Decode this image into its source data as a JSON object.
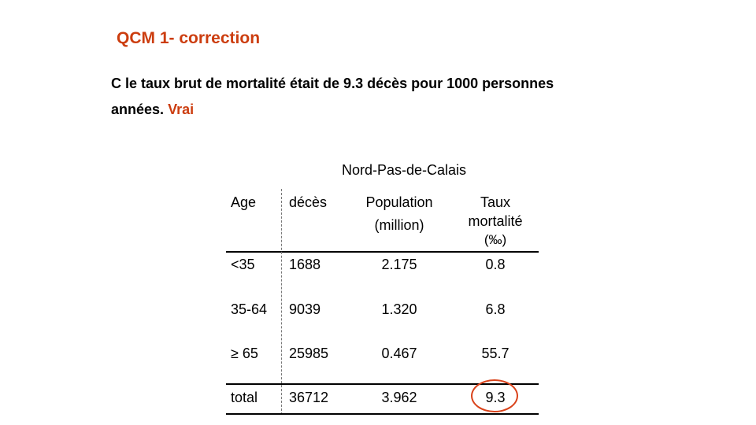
{
  "slide": {
    "title": "QCM 1- correction",
    "statement_line1": "C le taux brut de mortalité était de 9.3 décès pour 1000 personnes",
    "statement_line2": "années.",
    "verdict": "Vrai",
    "accent_color": "#cc3d0f"
  },
  "table": {
    "caption": "Nord-Pas-de-Calais",
    "headers": {
      "age": "Age",
      "deces": "décès",
      "population_l1": "Population",
      "population_l2": "(million)",
      "taux_l1": "Taux",
      "taux_l2": "mortalité",
      "taux_l3": "(‰)"
    },
    "rows": [
      {
        "age": "<35",
        "deces": "1688",
        "population": "2.175",
        "taux": "0.8"
      },
      {
        "age": "35-64",
        "deces": "9039",
        "population": "1.320",
        "taux": "6.8"
      },
      {
        "age": "≥ 65",
        "deces": "25985",
        "population": "0.467",
        "taux": "55.7"
      }
    ],
    "total": {
      "age": "total",
      "deces": "36712",
      "population": "3.962",
      "taux": "9.3"
    },
    "highlight_color": "#d9421a"
  }
}
